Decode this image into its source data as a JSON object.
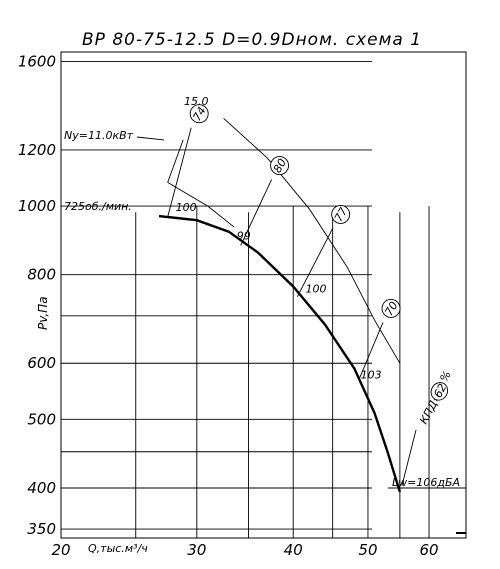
{
  "chart_data": {
    "type": "line",
    "title": "ВР 80-75-12.5  D=0.9Dном.  схема 1",
    "xlabel": "Q,тыс.м³/ч",
    "ylabel": "Pv,Па",
    "x_scale": "log",
    "y_scale": "log",
    "xlim": [
      20,
      67
    ],
    "ylim": [
      340,
      1650
    ],
    "x_ticks": [
      "20",
      "30",
      "40",
      "50",
      "60"
    ],
    "y_ticks": [
      "1600",
      "1200",
      "1000",
      "800",
      "600",
      "500",
      "400",
      "350"
    ],
    "ny_label": "Ny=11.0кВт",
    "speed_label": "725об./мин.",
    "lw_label": "Lw=106дБА",
    "kpd_label": "КПД=",
    "kpd_value": "62",
    "kpd_unit": "%",
    "series": [
      {
        "points": [
          [
            27.5,
            965
          ],
          [
            30,
            955
          ],
          [
            33,
            920
          ],
          [
            36,
            860
          ],
          [
            40,
            770
          ],
          [
            44,
            680
          ],
          [
            48,
            590
          ],
          [
            51,
            510
          ],
          [
            53,
            450
          ],
          [
            55,
            395
          ]
        ]
      }
    ],
    "power_curve": {
      "label": "15.0",
      "points": [
        [
          32.5,
          1330
        ],
        [
          37,
          1170
        ],
        [
          42,
          990
        ],
        [
          47,
          820
        ],
        [
          51,
          690
        ],
        [
          55,
          600
        ]
      ]
    },
    "noise_points": [
      {
        "label": "100",
        "x": 28.5,
        "y": 965
      },
      {
        "label": "99",
        "x": 34.2,
        "y": 880
      },
      {
        "label": "100",
        "x": 42,
        "y": 740
      },
      {
        "label": "103",
        "x": 49.5,
        "y": 560
      }
    ],
    "efficiency_markers": [
      {
        "value": "74",
        "line_from": [
          27.5,
          965
        ],
        "line_to": [
          29.5,
          1290
        ]
      },
      {
        "value": "80",
        "line_from": [
          34.2,
          880
        ],
        "line_to": [
          37.5,
          1090
        ]
      },
      {
        "value": "77",
        "line_from": [
          40.5,
          745
        ],
        "line_to": [
          45,
          930
        ]
      },
      {
        "value": "70",
        "line_from": [
          48.7,
          570
        ],
        "line_to": [
          52.3,
          685
        ]
      }
    ],
    "ny_curve": [
      [
        27.5,
        1080
      ],
      [
        31,
        1000
      ],
      [
        33.5,
        935
      ]
    ]
  }
}
